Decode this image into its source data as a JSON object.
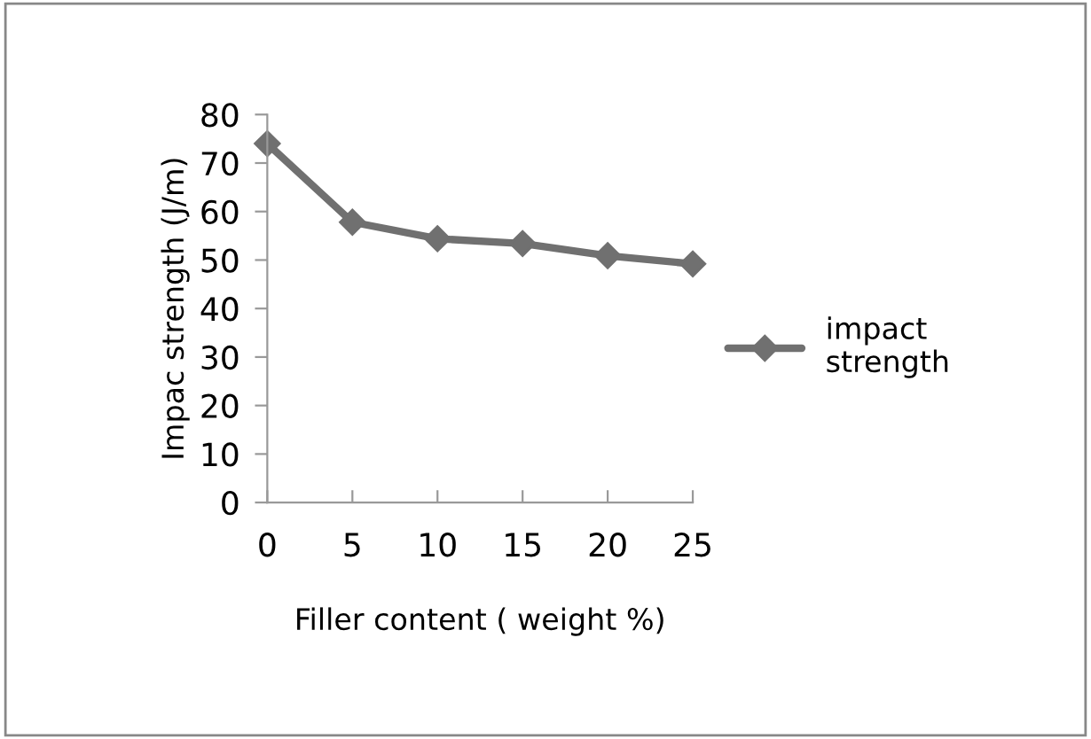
{
  "chart_data": {
    "type": "line",
    "xlabel": "Filler content ( weight %)",
    "ylabel": "Impac strength (J/m)",
    "categories": [
      "0",
      "5",
      "10",
      "15",
      "20",
      "25"
    ],
    "series": [
      {
        "name": "impact\nstrength",
        "color": "#707070",
        "values": [
          74.0,
          57.8,
          54.4,
          53.4,
          50.9,
          49.2
        ]
      }
    ],
    "ylim": [
      0,
      80
    ],
    "yticks": [
      0,
      10,
      20,
      30,
      40,
      50,
      60,
      70,
      80
    ],
    "grid": false,
    "legend": "right",
    "marker": "diamond",
    "line_style": "solid"
  }
}
